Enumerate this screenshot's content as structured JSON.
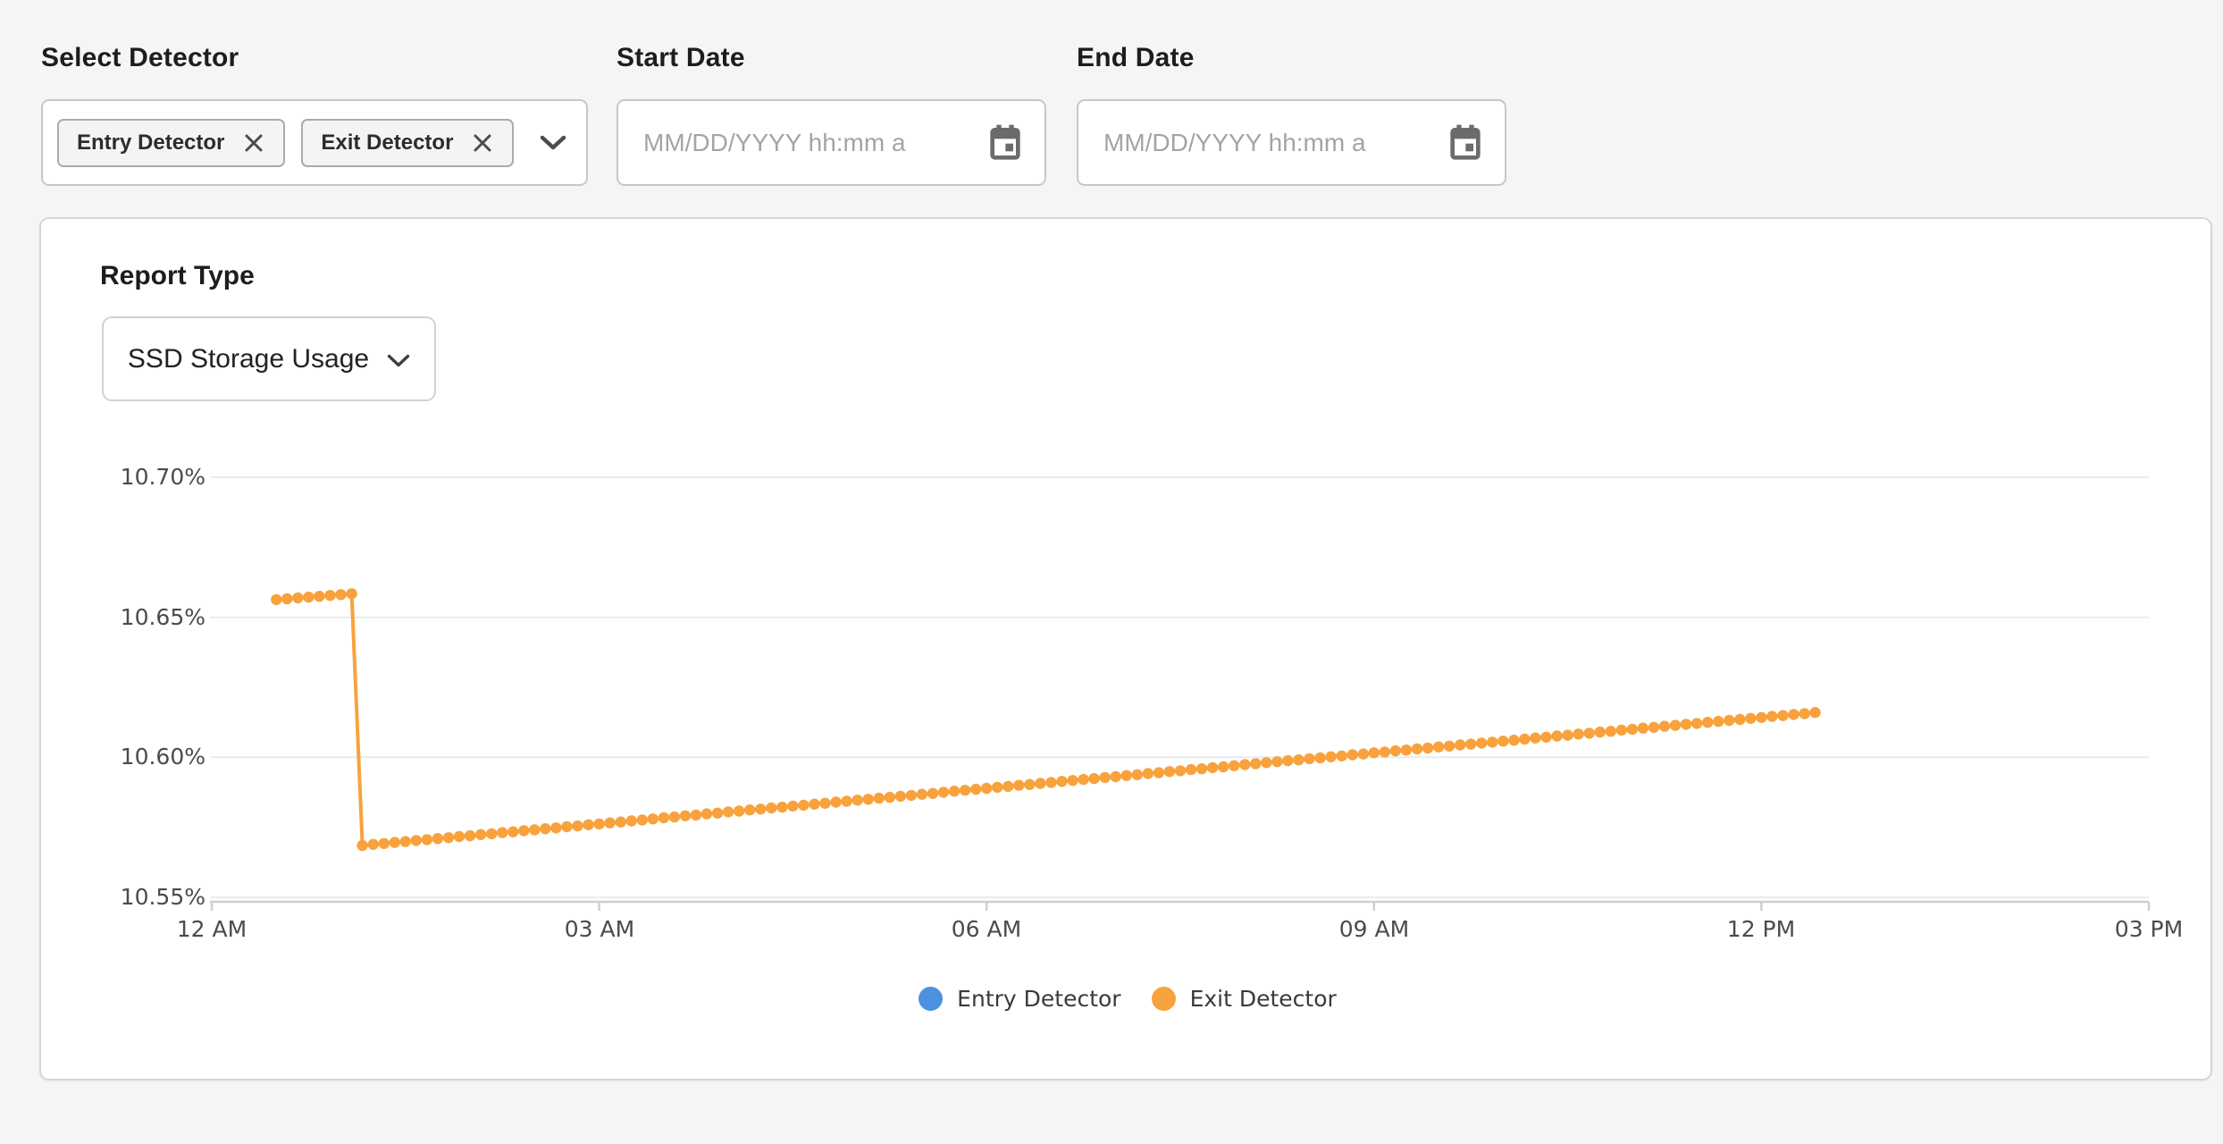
{
  "page": {
    "background": "#f5f5f6"
  },
  "filters": {
    "select_detector": {
      "label": "Select Detector",
      "chips": [
        {
          "label": "Entry Detector",
          "remove_icon": "x-icon"
        },
        {
          "label": "Exit Detector",
          "remove_icon": "x-icon"
        }
      ],
      "expand_icon": "chevron-down-icon"
    },
    "start_date": {
      "label": "Start Date",
      "value": "",
      "placeholder": "MM/DD/YYYY hh:mm a",
      "icon": "calendar-icon"
    },
    "end_date": {
      "label": "End Date",
      "value": "",
      "placeholder": "MM/DD/YYYY hh:mm a",
      "icon": "calendar-icon"
    }
  },
  "report": {
    "heading": "Report Type",
    "selected_type": "SSD Storage Usage",
    "dropdown_icon": "chevron-down-icon"
  },
  "chart_data": {
    "type": "line",
    "title": "",
    "xlabel": "",
    "ylabel": "",
    "unit": "%",
    "grid": true,
    "legend_position": "bottom",
    "y_ticks": [
      "10.70%",
      "10.65%",
      "10.60%",
      "10.55%"
    ],
    "y_grid_values": [
      10.7,
      10.65,
      10.6,
      10.55
    ],
    "ylim": [
      10.55,
      10.7
    ],
    "x_ticks": [
      "12 AM",
      "03 AM",
      "06 AM",
      "09 AM",
      "12 PM",
      "03 PM"
    ],
    "x_tick_minutes": [
      0,
      180,
      360,
      540,
      720,
      900
    ],
    "x_range_minutes": [
      0,
      900
    ],
    "grid_color": "#E8ECEF",
    "axis_color": "#CBD0D5",
    "legend": [
      {
        "name": "Entry Detector",
        "color": "#4E90E0"
      },
      {
        "name": "Exit Detector",
        "color": "#F8A23D"
      }
    ],
    "series": [
      {
        "name": "Entry Detector",
        "color": "#4E90E0",
        "points": []
      },
      {
        "name": "Exit Detector",
        "color": "#F8A23D",
        "points": [
          [
            30,
            10.6563
          ],
          [
            35,
            10.6566
          ],
          [
            40,
            10.6569
          ],
          [
            45,
            10.6572
          ],
          [
            50,
            10.6575
          ],
          [
            55,
            10.6578
          ],
          [
            60,
            10.6581
          ],
          [
            65,
            10.6584
          ],
          [
            70,
            10.5685
          ],
          [
            75,
            10.5689
          ],
          [
            80,
            10.5692
          ],
          [
            85,
            10.5696
          ],
          [
            90,
            10.5699
          ],
          [
            95,
            10.5703
          ],
          [
            100,
            10.5706
          ],
          [
            105,
            10.571
          ],
          [
            110,
            10.5713
          ],
          [
            115,
            10.5717
          ],
          [
            120,
            10.572
          ],
          [
            125,
            10.5724
          ],
          [
            130,
            10.5727
          ],
          [
            135,
            10.5731
          ],
          [
            140,
            10.5734
          ],
          [
            145,
            10.5738
          ],
          [
            150,
            10.5741
          ],
          [
            155,
            10.5745
          ],
          [
            160,
            10.5748
          ],
          [
            165,
            10.5752
          ],
          [
            170,
            10.5755
          ],
          [
            175,
            10.5759
          ],
          [
            180,
            10.5762
          ],
          [
            185,
            10.5766
          ],
          [
            190,
            10.5769
          ],
          [
            195,
            10.5773
          ],
          [
            200,
            10.5776
          ],
          [
            205,
            10.578
          ],
          [
            210,
            10.5784
          ],
          [
            215,
            10.5787
          ],
          [
            220,
            10.5791
          ],
          [
            225,
            10.5794
          ],
          [
            230,
            10.5798
          ],
          [
            235,
            10.5801
          ],
          [
            240,
            10.5805
          ],
          [
            245,
            10.5808
          ],
          [
            250,
            10.5812
          ],
          [
            255,
            10.5815
          ],
          [
            260,
            10.5819
          ],
          [
            265,
            10.5822
          ],
          [
            270,
            10.5826
          ],
          [
            275,
            10.5829
          ],
          [
            280,
            10.5833
          ],
          [
            285,
            10.5836
          ],
          [
            290,
            10.584
          ],
          [
            295,
            10.5843
          ],
          [
            300,
            10.5847
          ],
          [
            305,
            10.585
          ],
          [
            310,
            10.5854
          ],
          [
            315,
            10.5857
          ],
          [
            320,
            10.5861
          ],
          [
            325,
            10.5864
          ],
          [
            330,
            10.5868
          ],
          [
            335,
            10.5871
          ],
          [
            340,
            10.5875
          ],
          [
            345,
            10.5879
          ],
          [
            350,
            10.5882
          ],
          [
            355,
            10.5886
          ],
          [
            360,
            10.5889
          ],
          [
            365,
            10.5893
          ],
          [
            370,
            10.5896
          ],
          [
            375,
            10.59
          ],
          [
            380,
            10.5903
          ],
          [
            385,
            10.5907
          ],
          [
            390,
            10.591
          ],
          [
            395,
            10.5914
          ],
          [
            400,
            10.5917
          ],
          [
            405,
            10.5921
          ],
          [
            410,
            10.5924
          ],
          [
            415,
            10.5928
          ],
          [
            420,
            10.5931
          ],
          [
            425,
            10.5935
          ],
          [
            430,
            10.5938
          ],
          [
            435,
            10.5942
          ],
          [
            440,
            10.5945
          ],
          [
            445,
            10.5949
          ],
          [
            450,
            10.5952
          ],
          [
            455,
            10.5956
          ],
          [
            460,
            10.5959
          ],
          [
            465,
            10.5963
          ],
          [
            470,
            10.5966
          ],
          [
            475,
            10.597
          ],
          [
            480,
            10.5974
          ],
          [
            485,
            10.5977
          ],
          [
            490,
            10.5981
          ],
          [
            495,
            10.5984
          ],
          [
            500,
            10.5988
          ],
          [
            505,
            10.5991
          ],
          [
            510,
            10.5995
          ],
          [
            515,
            10.5998
          ],
          [
            520,
            10.6002
          ],
          [
            525,
            10.6005
          ],
          [
            530,
            10.6009
          ],
          [
            535,
            10.6012
          ],
          [
            540,
            10.6016
          ],
          [
            545,
            10.6019
          ],
          [
            550,
            10.6023
          ],
          [
            555,
            10.6026
          ],
          [
            560,
            10.603
          ],
          [
            565,
            10.6033
          ],
          [
            570,
            10.6037
          ],
          [
            575,
            10.604
          ],
          [
            580,
            10.6044
          ],
          [
            585,
            10.6047
          ],
          [
            590,
            10.6051
          ],
          [
            595,
            10.6054
          ],
          [
            600,
            10.6058
          ],
          [
            605,
            10.6061
          ],
          [
            610,
            10.6065
          ],
          [
            615,
            10.6069
          ],
          [
            620,
            10.6072
          ],
          [
            625,
            10.6076
          ],
          [
            630,
            10.6079
          ],
          [
            635,
            10.6083
          ],
          [
            640,
            10.6086
          ],
          [
            645,
            10.609
          ],
          [
            650,
            10.6093
          ],
          [
            655,
            10.6097
          ],
          [
            660,
            10.61
          ],
          [
            665,
            10.6104
          ],
          [
            670,
            10.6107
          ],
          [
            675,
            10.6111
          ],
          [
            680,
            10.6114
          ],
          [
            685,
            10.6118
          ],
          [
            690,
            10.6121
          ],
          [
            695,
            10.6125
          ],
          [
            700,
            10.6128
          ],
          [
            705,
            10.6132
          ],
          [
            710,
            10.6135
          ],
          [
            715,
            10.6139
          ],
          [
            720,
            10.6142
          ],
          [
            725,
            10.6146
          ],
          [
            730,
            10.6149
          ],
          [
            735,
            10.6153
          ],
          [
            740,
            10.6156
          ],
          [
            745,
            10.616
          ]
        ]
      }
    ]
  }
}
